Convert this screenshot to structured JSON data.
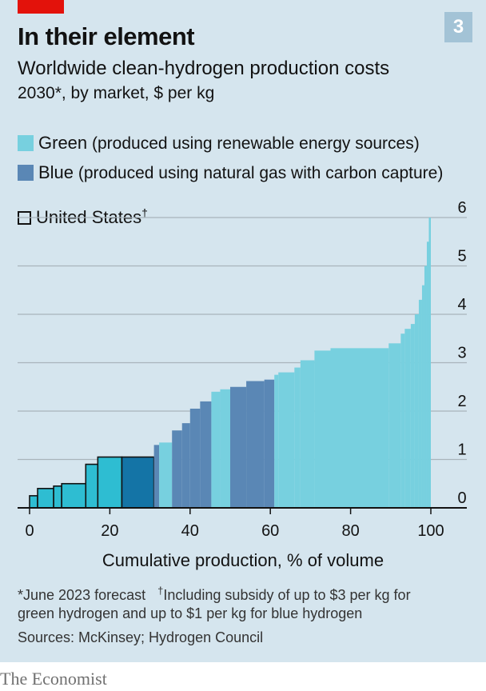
{
  "brand": {
    "badge": "3",
    "publisher": "The Economist"
  },
  "header": {
    "title": "In their element",
    "subtitle": "Worldwide clean-hydrogen production costs",
    "subtitle2": "2030*, by market, $ per kg"
  },
  "legend": {
    "green_name": "Green",
    "green_desc": " (produced using renewable energy sources)",
    "blue_name": "Blue",
    "blue_desc": " (produced using natural gas with carbon capture)",
    "us_label": "United States",
    "us_mark": "†"
  },
  "notes": {
    "line1a": "*June 2023 forecast",
    "line1b_mark": "†",
    "line1b": "Including subsidy of up to $3 per kg for",
    "line2": "green hydrogen and up to $1 per kg for blue hydrogen",
    "sources": "Sources: McKinsey; Hydrogen Council"
  },
  "colors": {
    "green": "#77d0df",
    "blue": "#5a87b5",
    "us_green": "#2ebdd2",
    "us_blue": "#1474a6",
    "background": "#d5e5ee",
    "grid": "#a9b4bb"
  },
  "chart_data": {
    "type": "bar",
    "subtype": "cost-curve (variable width bars)",
    "title": "Worldwide clean-hydrogen production costs",
    "subtitle": "2030*, by market, $ per kg",
    "xlabel": "Cumulative production, % of volume",
    "ylabel": "$ per kg",
    "xlim": [
      0,
      100
    ],
    "ylim": [
      0,
      6
    ],
    "xticks": [
      "0",
      "20",
      "40",
      "60",
      "80",
      "100"
    ],
    "yticks": [
      "0",
      "1",
      "2",
      "3",
      "4",
      "5",
      "6"
    ],
    "y_axis_position": "right",
    "grid": true,
    "series_legend": [
      "Green",
      "Blue",
      "United States†"
    ],
    "segments": [
      {
        "x0": 0,
        "x1": 2,
        "y": 0.25,
        "type": "green",
        "us": true
      },
      {
        "x0": 2,
        "x1": 6,
        "y": 0.4,
        "type": "green",
        "us": true
      },
      {
        "x0": 6,
        "x1": 8,
        "y": 0.45,
        "type": "green",
        "us": true
      },
      {
        "x0": 8,
        "x1": 14,
        "y": 0.5,
        "type": "green",
        "us": true
      },
      {
        "x0": 14,
        "x1": 17,
        "y": 0.9,
        "type": "green",
        "us": true
      },
      {
        "x0": 17,
        "x1": 23,
        "y": 1.05,
        "type": "green",
        "us": true
      },
      {
        "x0": 23,
        "x1": 31,
        "y": 1.05,
        "type": "blue",
        "us": true
      },
      {
        "x0": 31,
        "x1": 32.3,
        "y": 1.3,
        "type": "blue",
        "us": false
      },
      {
        "x0": 32.3,
        "x1": 35.5,
        "y": 1.35,
        "type": "green",
        "us": false
      },
      {
        "x0": 35.5,
        "x1": 38,
        "y": 1.6,
        "type": "blue",
        "us": false
      },
      {
        "x0": 38,
        "x1": 40,
        "y": 1.75,
        "type": "blue",
        "us": false
      },
      {
        "x0": 40,
        "x1": 42.5,
        "y": 2.05,
        "type": "blue",
        "us": false
      },
      {
        "x0": 42.5,
        "x1": 45.3,
        "y": 2.2,
        "type": "blue",
        "us": false
      },
      {
        "x0": 45.3,
        "x1": 47.5,
        "y": 2.4,
        "type": "green",
        "us": false
      },
      {
        "x0": 47.5,
        "x1": 50,
        "y": 2.45,
        "type": "green",
        "us": false
      },
      {
        "x0": 50,
        "x1": 54,
        "y": 2.5,
        "type": "blue",
        "us": false
      },
      {
        "x0": 54,
        "x1": 58.5,
        "y": 2.62,
        "type": "blue",
        "us": false
      },
      {
        "x0": 58.5,
        "x1": 61,
        "y": 2.65,
        "type": "blue",
        "us": false
      },
      {
        "x0": 61,
        "x1": 62,
        "y": 2.75,
        "type": "green",
        "us": false
      },
      {
        "x0": 62,
        "x1": 66,
        "y": 2.8,
        "type": "green",
        "us": false
      },
      {
        "x0": 66,
        "x1": 67.5,
        "y": 2.9,
        "type": "green",
        "us": false
      },
      {
        "x0": 67.5,
        "x1": 71,
        "y": 3.05,
        "type": "green",
        "us": false
      },
      {
        "x0": 71,
        "x1": 75,
        "y": 3.25,
        "type": "green",
        "us": false
      },
      {
        "x0": 75,
        "x1": 89.5,
        "y": 3.3,
        "type": "green",
        "us": false
      },
      {
        "x0": 89.5,
        "x1": 92.5,
        "y": 3.4,
        "type": "green",
        "us": false
      },
      {
        "x0": 92.5,
        "x1": 93.5,
        "y": 3.6,
        "type": "green",
        "us": false
      },
      {
        "x0": 93.5,
        "x1": 95,
        "y": 3.7,
        "type": "green",
        "us": false
      },
      {
        "x0": 95,
        "x1": 96,
        "y": 3.8,
        "type": "green",
        "us": false
      },
      {
        "x0": 96,
        "x1": 97,
        "y": 4.0,
        "type": "green",
        "us": false
      },
      {
        "x0": 97,
        "x1": 97.8,
        "y": 4.3,
        "type": "green",
        "us": false
      },
      {
        "x0": 97.8,
        "x1": 98.4,
        "y": 4.6,
        "type": "green",
        "us": false
      },
      {
        "x0": 98.4,
        "x1": 99,
        "y": 5.0,
        "type": "green",
        "us": false
      },
      {
        "x0": 99,
        "x1": 99.5,
        "y": 5.5,
        "type": "green",
        "us": false
      },
      {
        "x0": 99.5,
        "x1": 100,
        "y": 6.0,
        "type": "green",
        "us": false
      }
    ]
  }
}
